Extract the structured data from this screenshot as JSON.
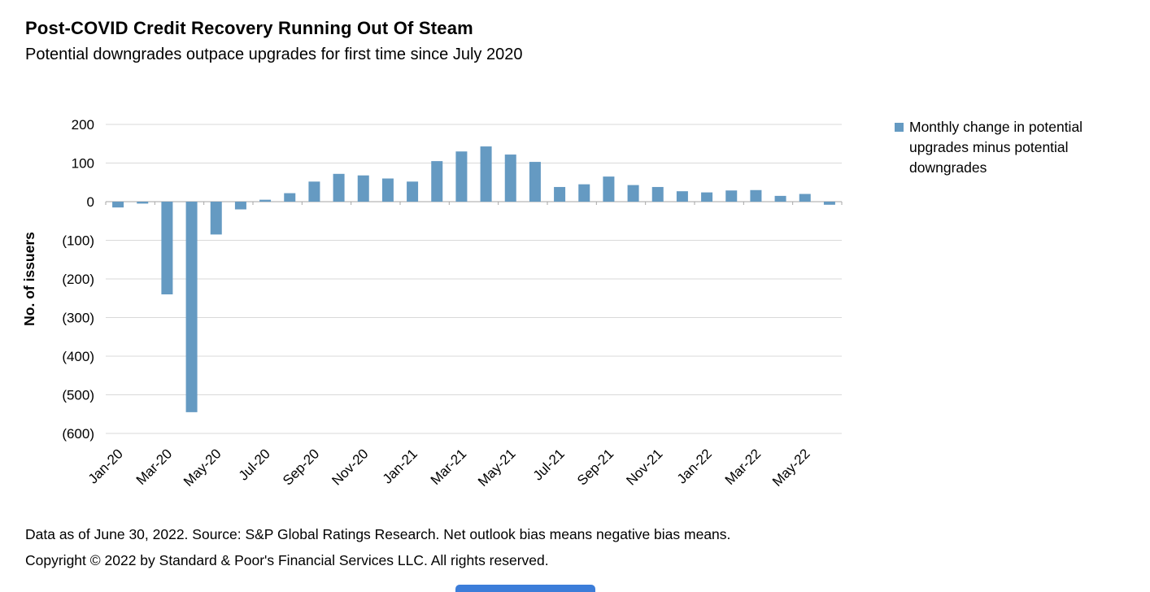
{
  "title": "Post-COVID Credit Recovery Running Out Of Steam",
  "subtitle": "Potential downgrades outpace upgrades for first time since July 2020",
  "chart_data": {
    "type": "bar",
    "title": "Post-COVID Credit Recovery Running Out Of Steam",
    "subtitle": "Potential downgrades outpace upgrades for first time since July 2020",
    "ylabel": "No. of issuers",
    "xlabel": "",
    "ylim": [
      -600,
      200
    ],
    "ytick_step": 100,
    "ytick_values": [
      200,
      100,
      0,
      -100,
      -200,
      -300,
      -400,
      -500,
      -600
    ],
    "ytick_labels": [
      "200",
      "100",
      "0",
      "(100)",
      "(200)",
      "(300)",
      "(400)",
      "(500)",
      "(600)"
    ],
    "grid": "horizontal",
    "categories": [
      "Jan-20",
      "Feb-20",
      "Mar-20",
      "Apr-20",
      "May-20",
      "Jun-20",
      "Jul-20",
      "Aug-20",
      "Sep-20",
      "Oct-20",
      "Nov-20",
      "Dec-20",
      "Jan-21",
      "Feb-21",
      "Mar-21",
      "Apr-21",
      "May-21",
      "Jun-21",
      "Jul-21",
      "Aug-21",
      "Sep-21",
      "Oct-21",
      "Nov-21",
      "Dec-21",
      "Jan-22",
      "Feb-22",
      "Mar-22",
      "Apr-22",
      "May-22",
      "Jun-22"
    ],
    "x_tick_every": 2,
    "values": [
      -15,
      -5,
      -240,
      -545,
      -85,
      -20,
      5,
      22,
      52,
      72,
      68,
      60,
      52,
      105,
      130,
      143,
      122,
      103,
      38,
      45,
      65,
      43,
      38,
      27,
      24,
      29,
      30,
      15,
      20,
      -8
    ],
    "bar_color": "#659ac2",
    "gridline_color": "#d9d9d9",
    "axis_line_color": "#a6a6a6",
    "legend": {
      "position": "right",
      "label": "Monthly change in potential upgrades minus potential downgrades"
    }
  },
  "footer": {
    "line1": "Data as of June 30, 2022. Source: S&P Global Ratings Research. Net outlook bias means negative bias means.",
    "line2": "Copyright © 2022 by Standard & Poor's Financial Services LLC. All rights reserved."
  },
  "colors": {
    "bar": "#659ac2",
    "bottom_accent": "#3c7dd9"
  }
}
